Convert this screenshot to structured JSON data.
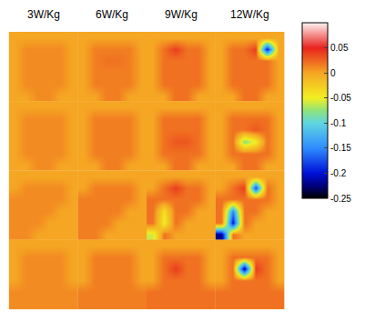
{
  "chart_data": {
    "type": "heatmap",
    "column_titles": [
      "3W/Kg",
      "6W/Kg",
      "9W/Kg",
      "12W/Kg"
    ],
    "tick_labels": false,
    "zlim": [
      -0.25,
      0.1
    ],
    "colorbar_ticks": [
      0.05,
      0,
      -0.05,
      -0.1,
      -0.15,
      -0.2,
      -0.25
    ],
    "panels": [
      [
        [
          [
            0,
            0,
            0,
            0,
            0,
            0
          ],
          [
            0,
            0.01,
            0.01,
            0.01,
            0.01,
            0
          ],
          [
            0,
            0.01,
            0.01,
            0.01,
            0.01,
            0
          ],
          [
            0,
            0.01,
            0.01,
            0.01,
            0.01,
            0
          ],
          [
            0,
            0.01,
            0.01,
            0.01,
            0.01,
            0
          ],
          [
            0,
            0,
            0.01,
            0.01,
            0,
            0
          ]
        ],
        [
          [
            0,
            0,
            0,
            0,
            0,
            0
          ],
          [
            0,
            0.015,
            0.015,
            0.015,
            0.015,
            0
          ],
          [
            0,
            0.015,
            0.02,
            0.02,
            0.015,
            0
          ],
          [
            0,
            0.015,
            0.015,
            0.015,
            0.015,
            0
          ],
          [
            0,
            0.015,
            0.015,
            0.015,
            0.015,
            0
          ],
          [
            0,
            0,
            0.015,
            0.015,
            0,
            0
          ]
        ],
        [
          [
            0,
            0,
            0,
            0,
            0,
            0
          ],
          [
            0,
            0.02,
            0.04,
            0.02,
            0.02,
            0
          ],
          [
            0,
            0.02,
            0.02,
            0.02,
            0.02,
            0
          ],
          [
            0,
            0.02,
            0.02,
            0.02,
            0.02,
            0
          ],
          [
            0,
            0.02,
            0.02,
            0.02,
            0.02,
            0
          ],
          [
            0,
            0,
            0.02,
            0.02,
            0,
            0
          ]
        ],
        [
          [
            0,
            0,
            0,
            0,
            0,
            0
          ],
          [
            0,
            0.02,
            0.02,
            0.04,
            -0.2,
            0
          ],
          [
            0,
            0.02,
            0.02,
            0.02,
            0.02,
            0
          ],
          [
            0,
            0.02,
            0.02,
            0.02,
            0.02,
            0
          ],
          [
            0,
            0.02,
            0.02,
            0.02,
            0.02,
            0
          ],
          [
            0,
            0,
            0.02,
            0.02,
            0,
            0
          ]
        ]
      ],
      [
        [
          [
            0,
            0,
            0,
            0,
            0,
            0
          ],
          [
            0,
            0.01,
            0.01,
            0.01,
            0.01,
            0
          ],
          [
            0,
            0.01,
            0.01,
            0.01,
            0.01,
            0
          ],
          [
            0,
            0.01,
            0.01,
            0.01,
            0.01,
            0
          ],
          [
            0,
            0.01,
            0.01,
            0.01,
            0.01,
            0
          ],
          [
            0,
            0,
            0.01,
            0.01,
            0,
            0
          ]
        ],
        [
          [
            0,
            0,
            0,
            0,
            0,
            0
          ],
          [
            0,
            0.015,
            0.015,
            0.015,
            0.015,
            0
          ],
          [
            0,
            0.015,
            0.015,
            0.015,
            0.015,
            0
          ],
          [
            0,
            0.015,
            0.015,
            0.015,
            0.015,
            0
          ],
          [
            0,
            0.015,
            0.015,
            0.015,
            0.015,
            0
          ],
          [
            0,
            0,
            0.015,
            0.015,
            0,
            0
          ]
        ],
        [
          [
            0,
            0,
            0,
            0,
            0,
            0
          ],
          [
            0,
            0.02,
            0.02,
            0.02,
            0.02,
            0
          ],
          [
            0,
            0.02,
            0.02,
            0.02,
            0.02,
            0
          ],
          [
            0,
            0.02,
            0.03,
            0.03,
            0.02,
            0
          ],
          [
            0,
            0.02,
            0.02,
            0.02,
            0.02,
            0
          ],
          [
            0,
            0,
            0.02,
            0.02,
            0,
            0
          ]
        ],
        [
          [
            0,
            0,
            0,
            0,
            0,
            0
          ],
          [
            0,
            0.02,
            0.02,
            0.02,
            0.02,
            0
          ],
          [
            0,
            0.02,
            0.02,
            0.03,
            0.02,
            0
          ],
          [
            0,
            0.02,
            -0.08,
            -0.05,
            0.02,
            0
          ],
          [
            0,
            0.02,
            0.02,
            0.02,
            0.02,
            0
          ],
          [
            0,
            0,
            0.02,
            0.02,
            0,
            0
          ]
        ]
      ],
      [
        [
          [
            0,
            0,
            0,
            0,
            0,
            0
          ],
          [
            0,
            0.01,
            0.01,
            0.01,
            0.01,
            0
          ],
          [
            0.01,
            0.01,
            0.01,
            0.01,
            0.01,
            0
          ],
          [
            0.01,
            0.01,
            0.01,
            0.01,
            0,
            0
          ],
          [
            0.01,
            0.01,
            0.01,
            0,
            0,
            0
          ],
          [
            0.01,
            0.01,
            0,
            0,
            0,
            0
          ]
        ],
        [
          [
            0,
            0,
            0,
            0,
            0,
            0
          ],
          [
            0,
            0.015,
            0.015,
            0.015,
            0.015,
            0
          ],
          [
            0.015,
            0.015,
            0.015,
            0.015,
            0.015,
            0
          ],
          [
            0.015,
            0.015,
            0.015,
            0.015,
            0,
            0
          ],
          [
            0.015,
            0.015,
            0.015,
            0,
            0,
            0
          ],
          [
            0.015,
            0.015,
            0,
            0,
            0,
            0
          ]
        ],
        [
          [
            0,
            0,
            0,
            0,
            0,
            0
          ],
          [
            0,
            0.02,
            0.04,
            0.02,
            0.02,
            0
          ],
          [
            0.02,
            0.02,
            0.02,
            0.02,
            0.02,
            0
          ],
          [
            0.02,
            -0.04,
            0.02,
            0.02,
            0,
            0
          ],
          [
            0.02,
            -0.05,
            0.02,
            0,
            0,
            0
          ],
          [
            -0.06,
            0.02,
            0,
            0,
            0,
            0
          ]
        ],
        [
          [
            0,
            0,
            0,
            0,
            0,
            0
          ],
          [
            0,
            0.02,
            0.04,
            -0.18,
            0.02,
            0
          ],
          [
            0.02,
            0.02,
            0.02,
            0.02,
            0.02,
            0
          ],
          [
            0.02,
            -0.15,
            0.02,
            0.02,
            0,
            0
          ],
          [
            0.02,
            -0.2,
            0.02,
            0,
            0,
            0
          ],
          [
            -0.22,
            0.02,
            0,
            0,
            0,
            0
          ]
        ]
      ],
      [
        [
          [
            0,
            0,
            0,
            0,
            0,
            0
          ],
          [
            0,
            0.01,
            0.01,
            0.01,
            0.01,
            0
          ],
          [
            0,
            0.01,
            0.01,
            0.01,
            0.01,
            0
          ],
          [
            0,
            0.01,
            0.01,
            0.01,
            0.01,
            0
          ],
          [
            0.01,
            0.01,
            0.01,
            0.01,
            0.01,
            0.01
          ],
          [
            0.01,
            0.01,
            0.01,
            0.01,
            0.01,
            0.01
          ]
        ],
        [
          [
            0,
            0,
            0,
            0,
            0,
            0
          ],
          [
            0,
            0.015,
            0.015,
            0.015,
            0.015,
            0
          ],
          [
            0,
            0.015,
            0.015,
            0.015,
            0.015,
            0
          ],
          [
            0,
            0.015,
            0.015,
            0.015,
            0.015,
            0
          ],
          [
            0.015,
            0.015,
            0.015,
            0.015,
            0.015,
            0.015
          ],
          [
            0.015,
            0.015,
            0.015,
            0.015,
            0.015,
            0.015
          ]
        ],
        [
          [
            0,
            0,
            0,
            0,
            0,
            0
          ],
          [
            0,
            0.02,
            0.02,
            0.02,
            0.02,
            0
          ],
          [
            0,
            0.02,
            0.04,
            0.02,
            0.02,
            0
          ],
          [
            0,
            0.02,
            0.02,
            0.02,
            0.02,
            0
          ],
          [
            0.02,
            0.02,
            0.02,
            0.02,
            0.02,
            0.02
          ],
          [
            0.02,
            0.02,
            0.02,
            0.02,
            0.02,
            0.02
          ]
        ],
        [
          [
            0,
            0,
            0,
            0,
            0,
            0
          ],
          [
            0,
            0.02,
            0.02,
            0.02,
            0.02,
            0
          ],
          [
            0,
            0.02,
            -0.22,
            0.04,
            0.02,
            0
          ],
          [
            0,
            0.02,
            0.02,
            0.02,
            0.02,
            0
          ],
          [
            0.02,
            0.02,
            0.02,
            0.02,
            0.02,
            0.02
          ],
          [
            0.02,
            0.02,
            0.02,
            0.02,
            0.02,
            0.02
          ]
        ]
      ]
    ]
  }
}
